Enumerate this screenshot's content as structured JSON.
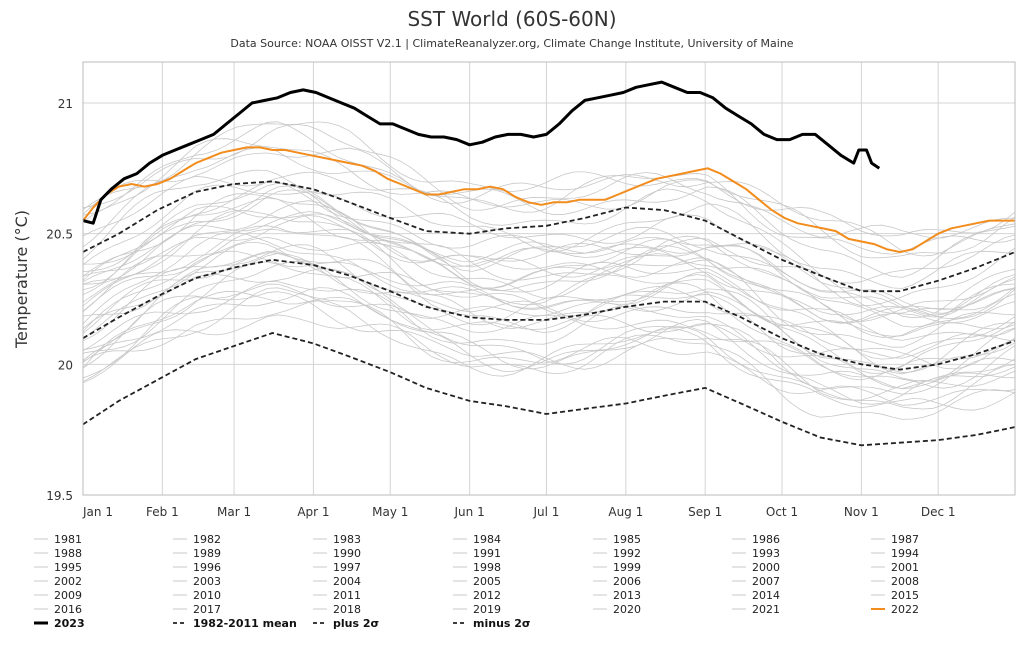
{
  "chart_data": {
    "type": "line",
    "title": "SST World (60S-60N)",
    "subtitle": "Data Source: NOAA OISST V2.1 | ClimateReanalyzer.org, Climate Change Institute, University of Maine",
    "ylabel": "Temperature (°C)",
    "xlabel": "",
    "ylim": [
      19.5,
      21.15
    ],
    "xlim": [
      1,
      365
    ],
    "yticks": [
      19.5,
      20,
      20.5,
      21
    ],
    "ytick_labels": [
      "19.5",
      "20",
      "20.5",
      "21"
    ],
    "grid": true,
    "legend_position": "bottom",
    "x_axis": {
      "ticks": [
        {
          "label": "Jan 1",
          "day": 1
        },
        {
          "label": "Feb 1",
          "day": 32
        },
        {
          "label": "Mar 1",
          "day": 60
        },
        {
          "label": "Apr 1",
          "day": 91
        },
        {
          "label": "May 1",
          "day": 121
        },
        {
          "label": "Jun 1",
          "day": 152
        },
        {
          "label": "Jul 1",
          "day": 182
        },
        {
          "label": "Aug 1",
          "day": 213
        },
        {
          "label": "Sep 1",
          "day": 244
        },
        {
          "label": "Oct 1",
          "day": 274
        },
        {
          "label": "Nov 1",
          "day": 305
        },
        {
          "label": "Dec 1",
          "day": 335
        }
      ]
    },
    "background_years": {
      "names": [
        "1981",
        "1982",
        "1983",
        "1984",
        "1985",
        "1986",
        "1987",
        "1988",
        "1989",
        "1990",
        "1991",
        "1992",
        "1993",
        "1994",
        "1995",
        "1996",
        "1997",
        "1998",
        "1999",
        "2000",
        "2001",
        "2002",
        "2003",
        "2004",
        "2005",
        "2006",
        "2007",
        "2008",
        "2009",
        "2010",
        "2011",
        "2012",
        "2013",
        "2014",
        "2015",
        "2016",
        "2017",
        "2018",
        "2019",
        "2020",
        "2021"
      ],
      "color": "#c8c8c8",
      "offsets_from_mean": [
        -0.12,
        -0.16,
        -0.05,
        -0.14,
        -0.18,
        -0.15,
        0.02,
        0.05,
        -0.13,
        0.03,
        0.0,
        -0.1,
        -0.07,
        -0.05,
        0.07,
        0.0,
        0.17,
        0.25,
        0.04,
        0.02,
        0.12,
        0.17,
        0.2,
        0.17,
        0.22,
        0.2,
        0.12,
        0.1,
        0.23,
        0.3,
        0.17,
        0.24,
        0.25,
        0.33,
        0.45,
        0.5,
        0.44,
        0.37,
        0.47,
        0.48,
        0.42
      ]
    },
    "series": [
      {
        "name": "2023",
        "color": "#000000",
        "style": "solid-bold",
        "x": [
          1,
          5,
          8,
          12,
          17,
          22,
          27,
          32,
          37,
          42,
          47,
          52,
          57,
          62,
          67,
          72,
          77,
          82,
          87,
          92,
          97,
          102,
          107,
          112,
          117,
          122,
          127,
          132,
          137,
          142,
          147,
          152,
          157,
          162,
          167,
          172,
          177,
          182,
          187,
          192,
          197,
          202,
          207,
          212,
          217,
          222,
          227,
          232,
          237,
          242,
          247,
          252,
          257,
          262,
          267,
          272,
          277,
          282,
          287,
          292,
          297,
          302,
          304,
          307,
          309,
          312
        ],
        "y": [
          20.55,
          20.54,
          20.63,
          20.67,
          20.71,
          20.73,
          20.77,
          20.8,
          20.82,
          20.84,
          20.86,
          20.88,
          20.92,
          20.96,
          21.0,
          21.01,
          21.02,
          21.04,
          21.05,
          21.04,
          21.02,
          21.0,
          20.98,
          20.95,
          20.92,
          20.92,
          20.9,
          20.88,
          20.87,
          20.87,
          20.86,
          20.84,
          20.85,
          20.87,
          20.88,
          20.88,
          20.87,
          20.88,
          20.92,
          20.97,
          21.01,
          21.02,
          21.03,
          21.04,
          21.06,
          21.07,
          21.08,
          21.06,
          21.04,
          21.04,
          21.02,
          20.98,
          20.95,
          20.92,
          20.88,
          20.86,
          20.86,
          20.88,
          20.88,
          20.84,
          20.8,
          20.77,
          20.82,
          20.82,
          20.77,
          20.75
        ]
      },
      {
        "name": "2022",
        "color": "#f28c1d",
        "style": "solid",
        "x": [
          1,
          5,
          10,
          15,
          20,
          25,
          30,
          35,
          40,
          45,
          50,
          55,
          60,
          65,
          70,
          75,
          80,
          85,
          90,
          95,
          100,
          105,
          110,
          115,
          120,
          125,
          130,
          135,
          140,
          145,
          150,
          155,
          160,
          165,
          170,
          175,
          180,
          185,
          190,
          195,
          200,
          205,
          210,
          215,
          220,
          225,
          230,
          235,
          240,
          245,
          250,
          255,
          260,
          265,
          270,
          275,
          280,
          285,
          290,
          295,
          300,
          305,
          310,
          315,
          320,
          325,
          330,
          335,
          340,
          345,
          350,
          355,
          360,
          365
        ],
        "y": [
          20.55,
          20.6,
          20.65,
          20.68,
          20.69,
          20.68,
          20.69,
          20.71,
          20.74,
          20.77,
          20.79,
          20.81,
          20.82,
          20.83,
          20.83,
          20.82,
          20.82,
          20.81,
          20.8,
          20.79,
          20.78,
          20.77,
          20.76,
          20.74,
          20.71,
          20.69,
          20.67,
          20.65,
          20.65,
          20.66,
          20.67,
          20.67,
          20.68,
          20.67,
          20.64,
          20.62,
          20.61,
          20.62,
          20.62,
          20.63,
          20.63,
          20.63,
          20.65,
          20.67,
          20.69,
          20.71,
          20.72,
          20.73,
          20.74,
          20.75,
          20.73,
          20.7,
          20.67,
          20.63,
          20.59,
          20.56,
          20.54,
          20.53,
          20.52,
          20.51,
          20.48,
          20.47,
          20.46,
          20.44,
          20.43,
          20.44,
          20.47,
          20.5,
          20.52,
          20.53,
          20.54,
          20.55,
          20.55,
          20.55
        ]
      },
      {
        "name": "1982-2011 mean",
        "color": "#222222",
        "style": "dashed",
        "x": [
          1,
          15,
          30,
          45,
          60,
          75,
          91,
          105,
          121,
          135,
          152,
          166,
          182,
          197,
          213,
          228,
          244,
          258,
          274,
          289,
          305,
          320,
          335,
          350,
          365
        ],
        "y": [
          20.1,
          20.18,
          20.26,
          20.33,
          20.37,
          20.4,
          20.38,
          20.34,
          20.28,
          20.22,
          20.18,
          20.17,
          20.17,
          20.19,
          20.22,
          20.24,
          20.24,
          20.18,
          20.1,
          20.04,
          20.0,
          19.98,
          20.0,
          20.04,
          20.09
        ]
      },
      {
        "name": "plus 2σ",
        "color": "#222222",
        "style": "dashed",
        "x": [
          1,
          15,
          30,
          45,
          60,
          75,
          91,
          105,
          121,
          135,
          152,
          166,
          182,
          197,
          213,
          228,
          244,
          258,
          274,
          289,
          305,
          320,
          335,
          350,
          365
        ],
        "y": [
          20.43,
          20.5,
          20.59,
          20.66,
          20.69,
          20.7,
          20.67,
          20.62,
          20.56,
          20.51,
          20.5,
          20.52,
          20.53,
          20.56,
          20.6,
          20.59,
          20.55,
          20.48,
          20.4,
          20.34,
          20.28,
          20.28,
          20.32,
          20.37,
          20.43
        ]
      },
      {
        "name": "minus 2σ",
        "color": "#222222",
        "style": "dashed",
        "x": [
          1,
          15,
          30,
          45,
          60,
          75,
          91,
          105,
          121,
          135,
          152,
          166,
          182,
          197,
          213,
          228,
          244,
          258,
          274,
          289,
          305,
          320,
          335,
          350,
          365
        ],
        "y": [
          19.77,
          19.86,
          19.94,
          20.02,
          20.07,
          20.12,
          20.08,
          20.03,
          19.97,
          19.91,
          19.86,
          19.84,
          19.81,
          19.83,
          19.85,
          19.88,
          19.91,
          19.85,
          19.78,
          19.72,
          19.69,
          19.7,
          19.71,
          19.73,
          19.76
        ]
      }
    ],
    "legend": [
      {
        "label": "1981",
        "style": "background"
      },
      {
        "label": "1982",
        "style": "background"
      },
      {
        "label": "1983",
        "style": "background"
      },
      {
        "label": "1984",
        "style": "background"
      },
      {
        "label": "1985",
        "style": "background"
      },
      {
        "label": "1986",
        "style": "background"
      },
      {
        "label": "1987",
        "style": "background"
      },
      {
        "label": "1988",
        "style": "background"
      },
      {
        "label": "1989",
        "style": "background"
      },
      {
        "label": "1990",
        "style": "background"
      },
      {
        "label": "1991",
        "style": "background"
      },
      {
        "label": "1992",
        "style": "background"
      },
      {
        "label": "1993",
        "style": "background"
      },
      {
        "label": "1994",
        "style": "background"
      },
      {
        "label": "1995",
        "style": "background"
      },
      {
        "label": "1996",
        "style": "background"
      },
      {
        "label": "1997",
        "style": "background"
      },
      {
        "label": "1998",
        "style": "background"
      },
      {
        "label": "1999",
        "style": "background"
      },
      {
        "label": "2000",
        "style": "background"
      },
      {
        "label": "2001",
        "style": "background"
      },
      {
        "label": "2002",
        "style": "background"
      },
      {
        "label": "2003",
        "style": "background"
      },
      {
        "label": "2004",
        "style": "background"
      },
      {
        "label": "2005",
        "style": "background"
      },
      {
        "label": "2006",
        "style": "background"
      },
      {
        "label": "2007",
        "style": "background"
      },
      {
        "label": "2008",
        "style": "background"
      },
      {
        "label": "2009",
        "style": "background"
      },
      {
        "label": "2010",
        "style": "background"
      },
      {
        "label": "2011",
        "style": "background"
      },
      {
        "label": "2012",
        "style": "background"
      },
      {
        "label": "2013",
        "style": "background"
      },
      {
        "label": "2014",
        "style": "background"
      },
      {
        "label": "2015",
        "style": "background"
      },
      {
        "label": "2016",
        "style": "background"
      },
      {
        "label": "2017",
        "style": "background"
      },
      {
        "label": "2018",
        "style": "background"
      },
      {
        "label": "2019",
        "style": "background"
      },
      {
        "label": "2020",
        "style": "background"
      },
      {
        "label": "2021",
        "style": "background"
      },
      {
        "label": "2022",
        "style": "orange"
      },
      {
        "label": "2023",
        "style": "bold"
      },
      {
        "label": "1982-2011 mean",
        "style": "dashed"
      },
      {
        "label": "plus 2σ",
        "style": "dashed"
      },
      {
        "label": "minus 2σ",
        "style": "dashed"
      }
    ]
  }
}
